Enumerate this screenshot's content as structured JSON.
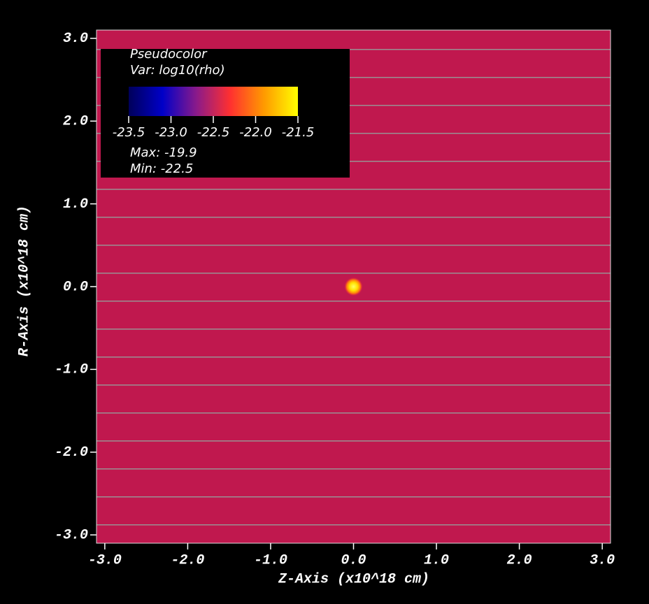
{
  "chart_data": {
    "type": "pseudocolor",
    "xlabel": "Z-Axis (x10^18 cm)",
    "ylabel": "R-Axis (x10^18 cm)",
    "xlim": [
      -3.1,
      3.1
    ],
    "ylim": [
      -3.1,
      3.1
    ],
    "xticks": [
      {
        "value": -3,
        "label": "-3.0"
      },
      {
        "value": -2,
        "label": "-2.0"
      },
      {
        "value": -1,
        "label": "-1.0"
      },
      {
        "value": 0,
        "label": "0.0"
      },
      {
        "value": 1,
        "label": "1.0"
      },
      {
        "value": 2,
        "label": "2.0"
      },
      {
        "value": 3,
        "label": "3.0"
      }
    ],
    "yticks": [
      {
        "value": -3,
        "label": "-3.0"
      },
      {
        "value": -2,
        "label": "-2.0"
      },
      {
        "value": -1,
        "label": "-1.0"
      },
      {
        "value": 0,
        "label": "0.0"
      },
      {
        "value": 1,
        "label": "1.0"
      },
      {
        "value": 2,
        "label": "2.0"
      },
      {
        "value": 3,
        "label": "3.0"
      }
    ],
    "background_color": "#c0184e",
    "points": [
      {
        "x": 0,
        "y": 0
      }
    ],
    "legend": {
      "title": "Pseudocolor",
      "variable": "Var: log10(rho)",
      "colorbar_lim": [
        -23.5,
        -21.5
      ],
      "colorbar_ticks": [
        -23.5,
        -23.0,
        -22.5,
        -22.0,
        -21.5
      ],
      "colors": [
        "#00005a",
        "#0000c8",
        "#8a1a8a",
        "#ff3030",
        "#ff9a00",
        "#ffff00"
      ],
      "max_label": "Max:",
      "max": -19.9,
      "min_label": "Min:",
      "min": -22.5
    }
  }
}
